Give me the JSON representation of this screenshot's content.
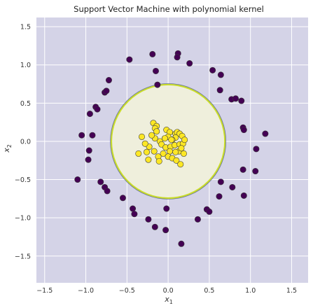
{
  "chart_data": {
    "type": "scatter",
    "title": "Support Vector Machine with polynomial kernel",
    "xlabel_base": "x",
    "xlabel_sub": "1",
    "ylabel_base": "x",
    "ylabel_sub": "2",
    "xlim": [
      -1.6,
      1.7
    ],
    "ylim": [
      -1.85,
      1.62
    ],
    "xticks": [
      -1.5,
      -1.0,
      -0.5,
      0.0,
      0.5,
      1.0,
      1.5
    ],
    "xtick_labels": [
      "−1.5",
      "−1.0",
      "−0.5",
      "0.0",
      "0.5",
      "1.0",
      "1.5"
    ],
    "yticks": [
      -1.5,
      -1.0,
      -0.5,
      0.0,
      0.5,
      1.0,
      1.5
    ],
    "ytick_labels": [
      "−1.5",
      "−1.0",
      "−0.5",
      "0.0",
      "0.5",
      "1.0",
      "1.5"
    ],
    "grid": true,
    "decision_boundary": {
      "shape": "circle",
      "center": [
        0.0,
        0.0
      ],
      "radius": 0.69
    },
    "colors": {
      "background": "#d4d3e7",
      "inner_region": "#efefdc",
      "boundary": "#c9dc2b",
      "outer_class": "#440154",
      "inner_class": "#fde725",
      "marker_edge": "#3a3a3a",
      "grid": "#ffffff",
      "text": "#333333"
    },
    "series": [
      {
        "class": 0,
        "points": [
          [
            -0.47,
            1.07
          ],
          [
            -0.19,
            1.14
          ],
          [
            -0.15,
            0.92
          ],
          [
            0.12,
            1.15
          ],
          [
            0.11,
            1.1
          ],
          [
            0.26,
            1.02
          ],
          [
            0.54,
            0.93
          ],
          [
            0.64,
            0.87
          ],
          [
            -0.13,
            0.74
          ],
          [
            -0.72,
            0.8
          ],
          [
            -0.77,
            0.64
          ],
          [
            -0.75,
            0.66
          ],
          [
            -0.88,
            0.45
          ],
          [
            -0.86,
            0.42
          ],
          [
            -0.95,
            0.36
          ],
          [
            0.63,
            0.67
          ],
          [
            0.77,
            0.55
          ],
          [
            0.82,
            0.56
          ],
          [
            0.89,
            0.53
          ],
          [
            -1.05,
            0.08
          ],
          [
            -0.92,
            0.08
          ],
          [
            -0.96,
            -0.12
          ],
          [
            -0.97,
            -0.24
          ],
          [
            0.91,
            0.18
          ],
          [
            0.92,
            0.15
          ],
          [
            1.18,
            0.1
          ],
          [
            1.07,
            -0.1
          ],
          [
            -1.1,
            -0.5
          ],
          [
            -0.82,
            -0.53
          ],
          [
            -0.77,
            -0.6
          ],
          [
            -0.74,
            -0.65
          ],
          [
            0.91,
            -0.37
          ],
          [
            1.06,
            -0.39
          ],
          [
            0.64,
            -0.53
          ],
          [
            0.78,
            -0.6
          ],
          [
            0.62,
            -0.72
          ],
          [
            0.92,
            -0.71
          ],
          [
            -0.55,
            -0.74
          ],
          [
            -0.43,
            -0.88
          ],
          [
            -0.41,
            -0.95
          ],
          [
            0.47,
            -0.89
          ],
          [
            0.5,
            -0.92
          ],
          [
            0.36,
            -1.02
          ],
          [
            -0.24,
            -1.02
          ],
          [
            -0.16,
            -1.12
          ],
          [
            -0.02,
            -0.88
          ],
          [
            -0.03,
            -1.16
          ],
          [
            0.16,
            -1.34
          ]
        ]
      },
      {
        "class": 1,
        "points": [
          [
            -0.18,
            0.24
          ],
          [
            -0.14,
            0.2
          ],
          [
            -0.16,
            0.17
          ],
          [
            -0.14,
            0.13
          ],
          [
            -0.02,
            0.15
          ],
          [
            0.02,
            0.12
          ],
          [
            0.09,
            0.1
          ],
          [
            0.11,
            0.12
          ],
          [
            0.14,
            0.1
          ],
          [
            0.17,
            0.07
          ],
          [
            0.09,
            0.05
          ],
          [
            0.05,
            0.02
          ],
          [
            0.0,
            0.06
          ],
          [
            -0.04,
            0.04
          ],
          [
            -0.1,
            0.0
          ],
          [
            -0.16,
            0.04
          ],
          [
            -0.2,
            0.08
          ],
          [
            -0.08,
            -0.04
          ],
          [
            -0.03,
            -0.08
          ],
          [
            0.03,
            -0.07
          ],
          [
            0.08,
            -0.05
          ],
          [
            0.14,
            -0.04
          ],
          [
            0.18,
            -0.03
          ],
          [
            0.13,
            -0.13
          ],
          [
            0.09,
            -0.14
          ],
          [
            0.02,
            -0.13
          ],
          [
            -0.06,
            -0.16
          ],
          [
            -0.12,
            -0.2
          ],
          [
            -0.17,
            -0.13
          ],
          [
            -0.26,
            -0.14
          ],
          [
            -0.23,
            -0.07
          ],
          [
            -0.28,
            -0.03
          ],
          [
            -0.32,
            0.06
          ],
          [
            -0.24,
            -0.24
          ],
          [
            -0.11,
            -0.26
          ],
          [
            0.0,
            -0.2
          ],
          [
            0.05,
            -0.22
          ],
          [
            0.1,
            -0.25
          ],
          [
            0.15,
            -0.3
          ],
          [
            0.19,
            -0.16
          ],
          [
            0.2,
            0.02
          ],
          [
            0.16,
            -0.09
          ],
          [
            -0.36,
            -0.16
          ],
          [
            0.04,
            0.02
          ]
        ]
      }
    ]
  }
}
